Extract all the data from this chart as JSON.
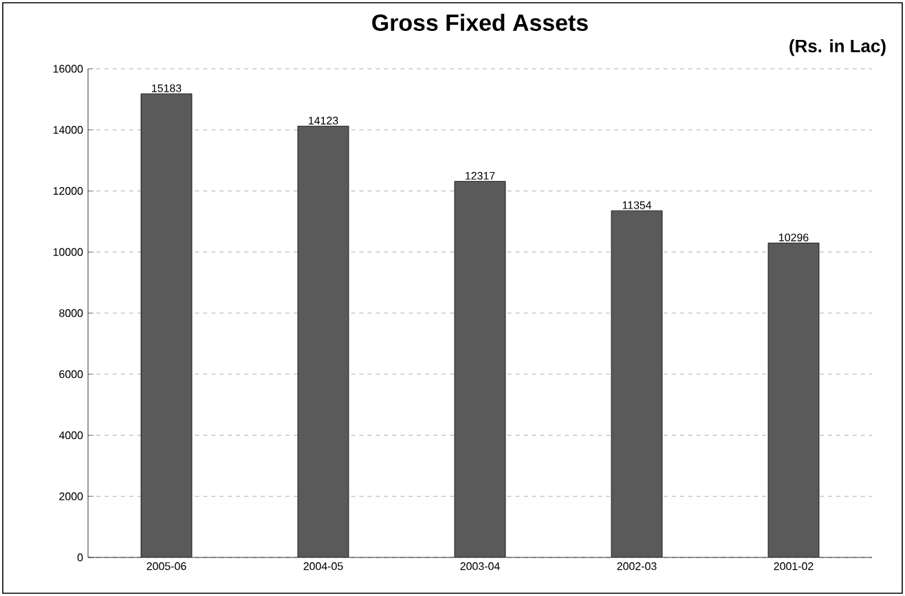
{
  "chart_data": {
    "type": "bar",
    "title": "Gross Fixed Assets",
    "subtitle": "(Rs. in Lac)",
    "categories": [
      "2005-06",
      "2004-05",
      "2003-04",
      "2002-03",
      "2001-02"
    ],
    "values": [
      15183,
      14123,
      12317,
      11354,
      10296
    ],
    "color": "#5a5a5a",
    "ylim": [
      0,
      16000
    ],
    "yticks": [
      0,
      2000,
      4000,
      6000,
      8000,
      10000,
      12000,
      14000,
      16000
    ],
    "grid": "y",
    "data_labels": true
  }
}
